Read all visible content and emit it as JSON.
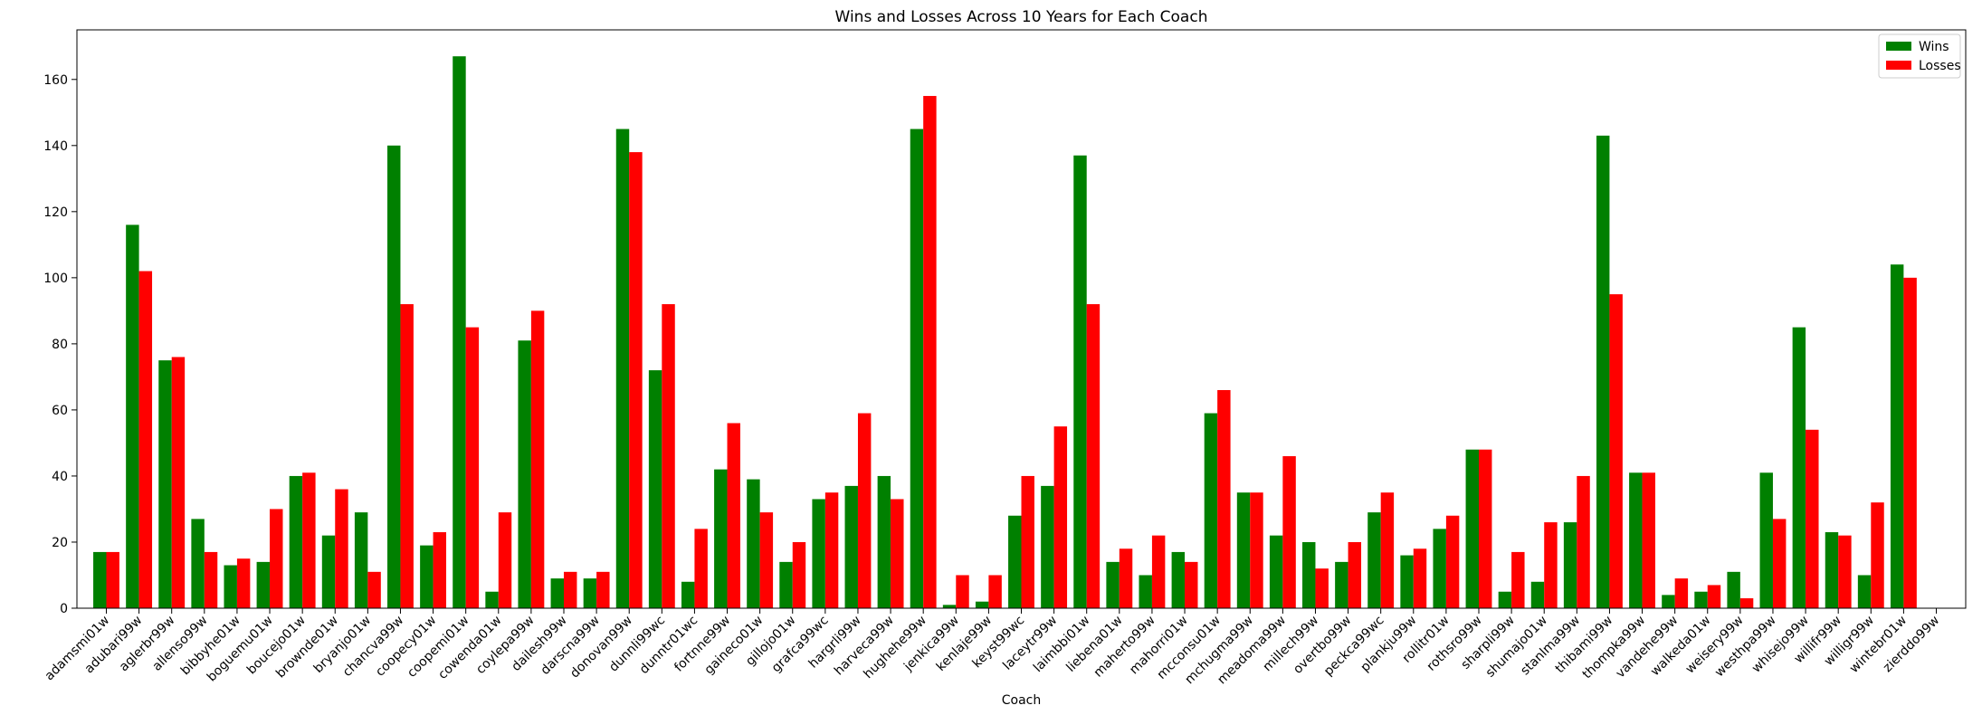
{
  "chart_data": {
    "type": "bar",
    "title": "Wins and Losses Across 10 Years for Each Coach",
    "xlabel": "Coach",
    "ylabel": "",
    "ylim": [
      0,
      175
    ],
    "yticks": [
      0,
      20,
      40,
      60,
      80,
      100,
      120,
      140,
      160
    ],
    "grid": false,
    "legend_position": "top-right",
    "categories": [
      "adamsmi01w",
      "adubari99w",
      "aglerbr99w",
      "allenso99w",
      "bibbyhe01w",
      "boguemu01w",
      "boucejo01w",
      "brownde01w",
      "bryanjo01w",
      "chancva99w",
      "coopecy01w",
      "coopemi01w",
      "cowenda01w",
      "coylepa99w",
      "dailesh99w",
      "darscna99w",
      "donovan99w",
      "dunnli99wc",
      "dunntr01wc",
      "fortnne99w",
      "gaineco01w",
      "gillojo01w",
      "grafca99wc",
      "hargrli99w",
      "harveca99w",
      "hughehe99w",
      "jenkica99w",
      "kenlaje99w",
      "keyst99wc",
      "laceytr99w",
      "laimbbi01w",
      "liebena01w",
      "maherto99w",
      "mahorri01w",
      "mcconsu01w",
      "mchugma99w",
      "meadoma99w",
      "millech99w",
      "overtbo99w",
      "peckca99wc",
      "plankju99w",
      "rollitr01w",
      "rothsro99w",
      "sharpli99w",
      "shumajo01w",
      "stanlma99w",
      "thibami99w",
      "thompka99w",
      "vandehe99w",
      "walkeda01w",
      "weisery99w",
      "westhpa99w",
      "whisejo99w",
      "willifr99w",
      "willigr99w",
      "wintebr01w",
      "zierddo99w"
    ],
    "series": [
      {
        "name": "Wins",
        "color": "#008000",
        "values": [
          17,
          116,
          75,
          27,
          13,
          14,
          40,
          22,
          29,
          140,
          19,
          167,
          5,
          81,
          9,
          9,
          145,
          72,
          8,
          42,
          39,
          14,
          33,
          37,
          40,
          145,
          1,
          2,
          28,
          37,
          137,
          14,
          10,
          17,
          59,
          35,
          22,
          20,
          14,
          29,
          16,
          24,
          48,
          5,
          8,
          26,
          143,
          41,
          4,
          5,
          11,
          41,
          85,
          23,
          10,
          104,
          0
        ]
      },
      {
        "name": "Losses",
        "color": "#ff0000",
        "values": [
          17,
          102,
          76,
          17,
          15,
          30,
          41,
          36,
          11,
          92,
          23,
          85,
          29,
          90,
          11,
          11,
          138,
          92,
          24,
          56,
          29,
          20,
          35,
          59,
          33,
          155,
          10,
          10,
          40,
          55,
          92,
          18,
          22,
          14,
          66,
          35,
          46,
          12,
          20,
          35,
          18,
          28,
          48,
          17,
          26,
          40,
          95,
          41,
          9,
          7,
          3,
          27,
          54,
          22,
          32,
          100,
          0
        ]
      }
    ]
  }
}
